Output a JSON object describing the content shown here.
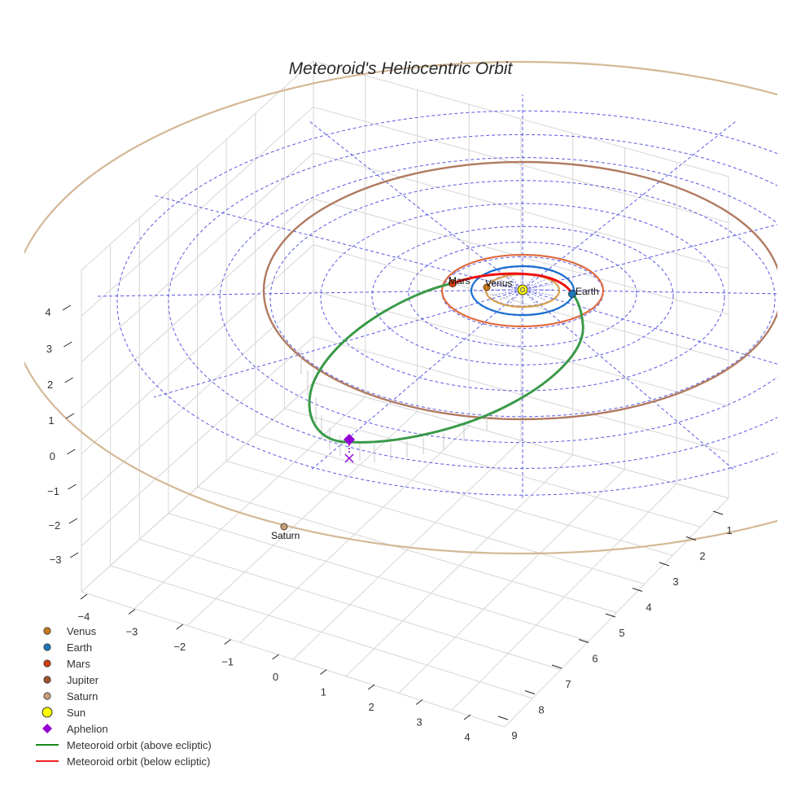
{
  "chart_data": {
    "type": "scatter3d",
    "title": "Meteoroid's Heliocentric Orbit",
    "xlabel": "",
    "ylabel": "",
    "zlabel": "",
    "axes": {
      "x_ticks": [
        -4,
        -3,
        -2,
        -1,
        0,
        1,
        2,
        3,
        4
      ],
      "y_ticks": [
        1,
        2,
        3,
        4,
        5,
        6,
        7,
        8,
        9
      ],
      "z_ticks": [
        -3,
        -2,
        -1,
        0,
        1,
        2,
        3,
        4
      ],
      "grid": true,
      "polar_ecliptic_grid": true
    },
    "bodies": [
      {
        "name": "Venus",
        "orbit_radius_au": 0.72,
        "color": "#c8781e"
      },
      {
        "name": "Earth",
        "orbit_radius_au": 1.0,
        "color": "#1f77b4"
      },
      {
        "name": "Mars",
        "orbit_radius_au": 1.52,
        "color": "#d04010"
      },
      {
        "name": "Jupiter",
        "orbit_radius_au": 5.2,
        "color": "#a0522d"
      },
      {
        "name": "Saturn",
        "orbit_radius_au": 9.5,
        "color": "#c8a078"
      },
      {
        "name": "Sun",
        "orbit_radius_au": 0,
        "color": "#ffff00"
      }
    ],
    "orbit_colors": {
      "Venus": "#d4a050",
      "Earth": "#1a6fd0",
      "Mars": "#e06a40",
      "Jupiter": "#b07a60",
      "Saturn": "#d4b896"
    },
    "meteoroid": {
      "perihelion_near": "Earth",
      "aphelion_au": 4.3,
      "segments": [
        {
          "name": "Meteoroid orbit (above ecliptic)",
          "color": "#2e9a3a"
        },
        {
          "name": "Meteoroid orbit (below ecliptic)",
          "color": "#ee1111"
        }
      ],
      "aphelion_marker": {
        "name": "Aphelion",
        "color": "#9400d3",
        "symbol": "diamond"
      }
    },
    "legend": {
      "position": "lower-left",
      "entries": [
        {
          "label": "Venus",
          "kind": "dot",
          "color": "#c8781e"
        },
        {
          "label": "Earth",
          "kind": "dot",
          "color": "#1f77b4"
        },
        {
          "label": "Mars",
          "kind": "dot",
          "color": "#d04010"
        },
        {
          "label": "Jupiter",
          "kind": "dot",
          "color": "#a0522d"
        },
        {
          "label": "Saturn",
          "kind": "dot",
          "color": "#c8a078"
        },
        {
          "label": "Sun",
          "kind": "sun",
          "color": "#ffff00"
        },
        {
          "label": "Aphelion",
          "kind": "diamond",
          "color": "#9400d3"
        },
        {
          "label": "Meteoroid orbit (above ecliptic)",
          "kind": "line",
          "color": "#1a8a1a"
        },
        {
          "label": "Meteoroid orbit (below ecliptic)",
          "kind": "line",
          "color": "#ee2222"
        }
      ]
    }
  },
  "labels": {
    "title": "Meteoroid's Heliocentric Orbit",
    "venus": "Venus",
    "earth": "Earth",
    "mars": "Mars",
    "saturn": "Saturn"
  }
}
